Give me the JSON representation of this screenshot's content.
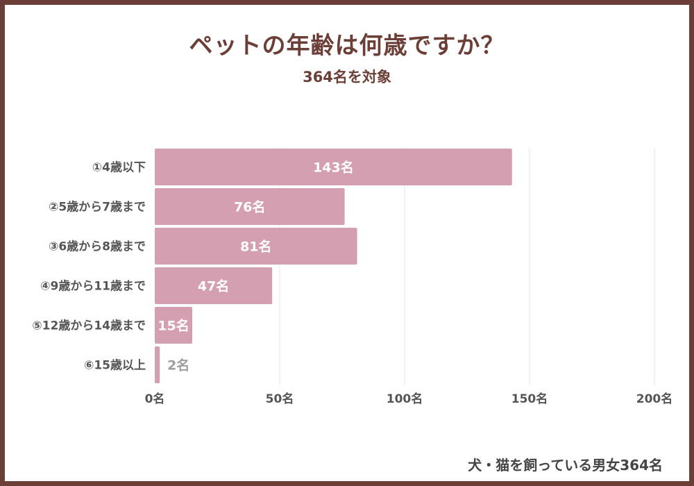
{
  "title": "ペットの年齢は何歳ですか？",
  "subtitle": "364名を対象",
  "footnote": "犬・猫を飼っている男女364名",
  "colors": {
    "bar": "#d4a0b1",
    "frame": "#6b3e37",
    "grid": "#e6e6e6",
    "label_inside": "#ffffff",
    "label_outside": "#9e9e9e",
    "tick": "#555555"
  },
  "chart_data": {
    "type": "bar",
    "orientation": "horizontal",
    "categories": [
      "①4歳以下",
      "②5歳から7歳まで",
      "③6歳から8歳まで",
      "④9歳から11歳まで",
      "⑤12歳から14歳まで",
      "⑥15歳以上"
    ],
    "values": [
      143,
      76,
      81,
      47,
      15,
      2
    ],
    "value_labels": [
      "143名",
      "76名",
      "81名",
      "47名",
      "15名",
      "2名"
    ],
    "xlim": [
      0,
      200
    ],
    "xticks": [
      0,
      50,
      100,
      150,
      200
    ],
    "xtick_labels": [
      "0名",
      "50名",
      "100名",
      "150名",
      "200名"
    ],
    "grid": true
  }
}
